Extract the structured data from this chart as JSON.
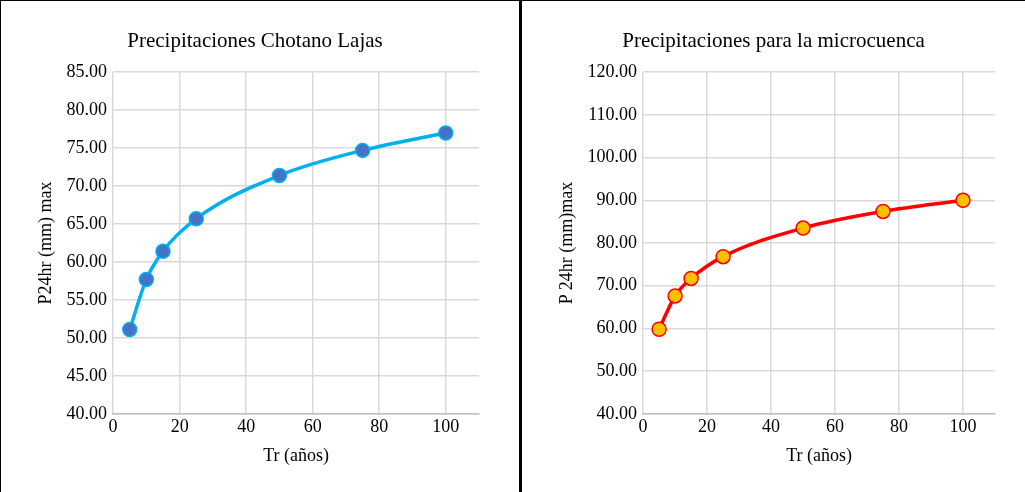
{
  "chart_data": [
    {
      "type": "line",
      "title": "Precipitaciones Chotano Lajas",
      "xlabel": "Tr (años)",
      "ylabel": "P24hr (mm) max",
      "x": [
        5,
        10,
        15,
        25,
        50,
        75,
        100
      ],
      "series": [
        {
          "color": "#00b0f0",
          "values": [
            51.1,
            57.7,
            61.4,
            65.7,
            71.4,
            74.7,
            77.0
          ]
        }
      ],
      "xlim": [
        0,
        110
      ],
      "xticks": [
        0,
        20,
        40,
        60,
        80,
        100
      ],
      "ylim": [
        40,
        85
      ],
      "yticks": [
        {
          "value": 40,
          "label": "40.00"
        },
        {
          "value": 45,
          "label": "45.00"
        },
        {
          "value": 50,
          "label": "50.00"
        },
        {
          "value": 55,
          "label": "55.00"
        },
        {
          "value": 60,
          "label": "60.00"
        },
        {
          "value": 65,
          "label": "65.00"
        },
        {
          "value": 70,
          "label": "70.00"
        },
        {
          "value": 75,
          "label": "75.00"
        },
        {
          "value": 80,
          "label": "80.00"
        },
        {
          "value": 85,
          "label": "85.00"
        }
      ],
      "grid": true,
      "legend": false,
      "marker": "circle",
      "line_style": "solid"
    },
    {
      "type": "line",
      "title": "Precipitaciones para la microcuenca",
      "xlabel": "Tr (años)",
      "ylabel": "P 24hr (mm)max",
      "x": [
        5,
        10,
        15,
        25,
        50,
        75,
        100
      ],
      "series": [
        {
          "color": "#ff0000",
          "values": [
            59.8,
            67.6,
            71.7,
            76.8,
            83.5,
            87.4,
            90.0
          ]
        }
      ],
      "xlim": [
        0,
        110
      ],
      "xticks": [
        0,
        20,
        40,
        60,
        80,
        100
      ],
      "ylim": [
        40,
        120
      ],
      "yticks": [
        {
          "value": 40,
          "label": "40.00"
        },
        {
          "value": 50,
          "label": "50.00"
        },
        {
          "value": 60,
          "label": "60.00"
        },
        {
          "value": 70,
          "label": "70.00"
        },
        {
          "value": 80,
          "label": "80.00"
        },
        {
          "value": 90,
          "label": "90.00"
        },
        {
          "value": 100,
          "label": "100.00"
        },
        {
          "value": 110,
          "label": "110.00"
        },
        {
          "value": 120,
          "label": "120.00"
        }
      ],
      "grid": true,
      "legend": false,
      "marker": "circle",
      "line_style": "solid"
    }
  ]
}
